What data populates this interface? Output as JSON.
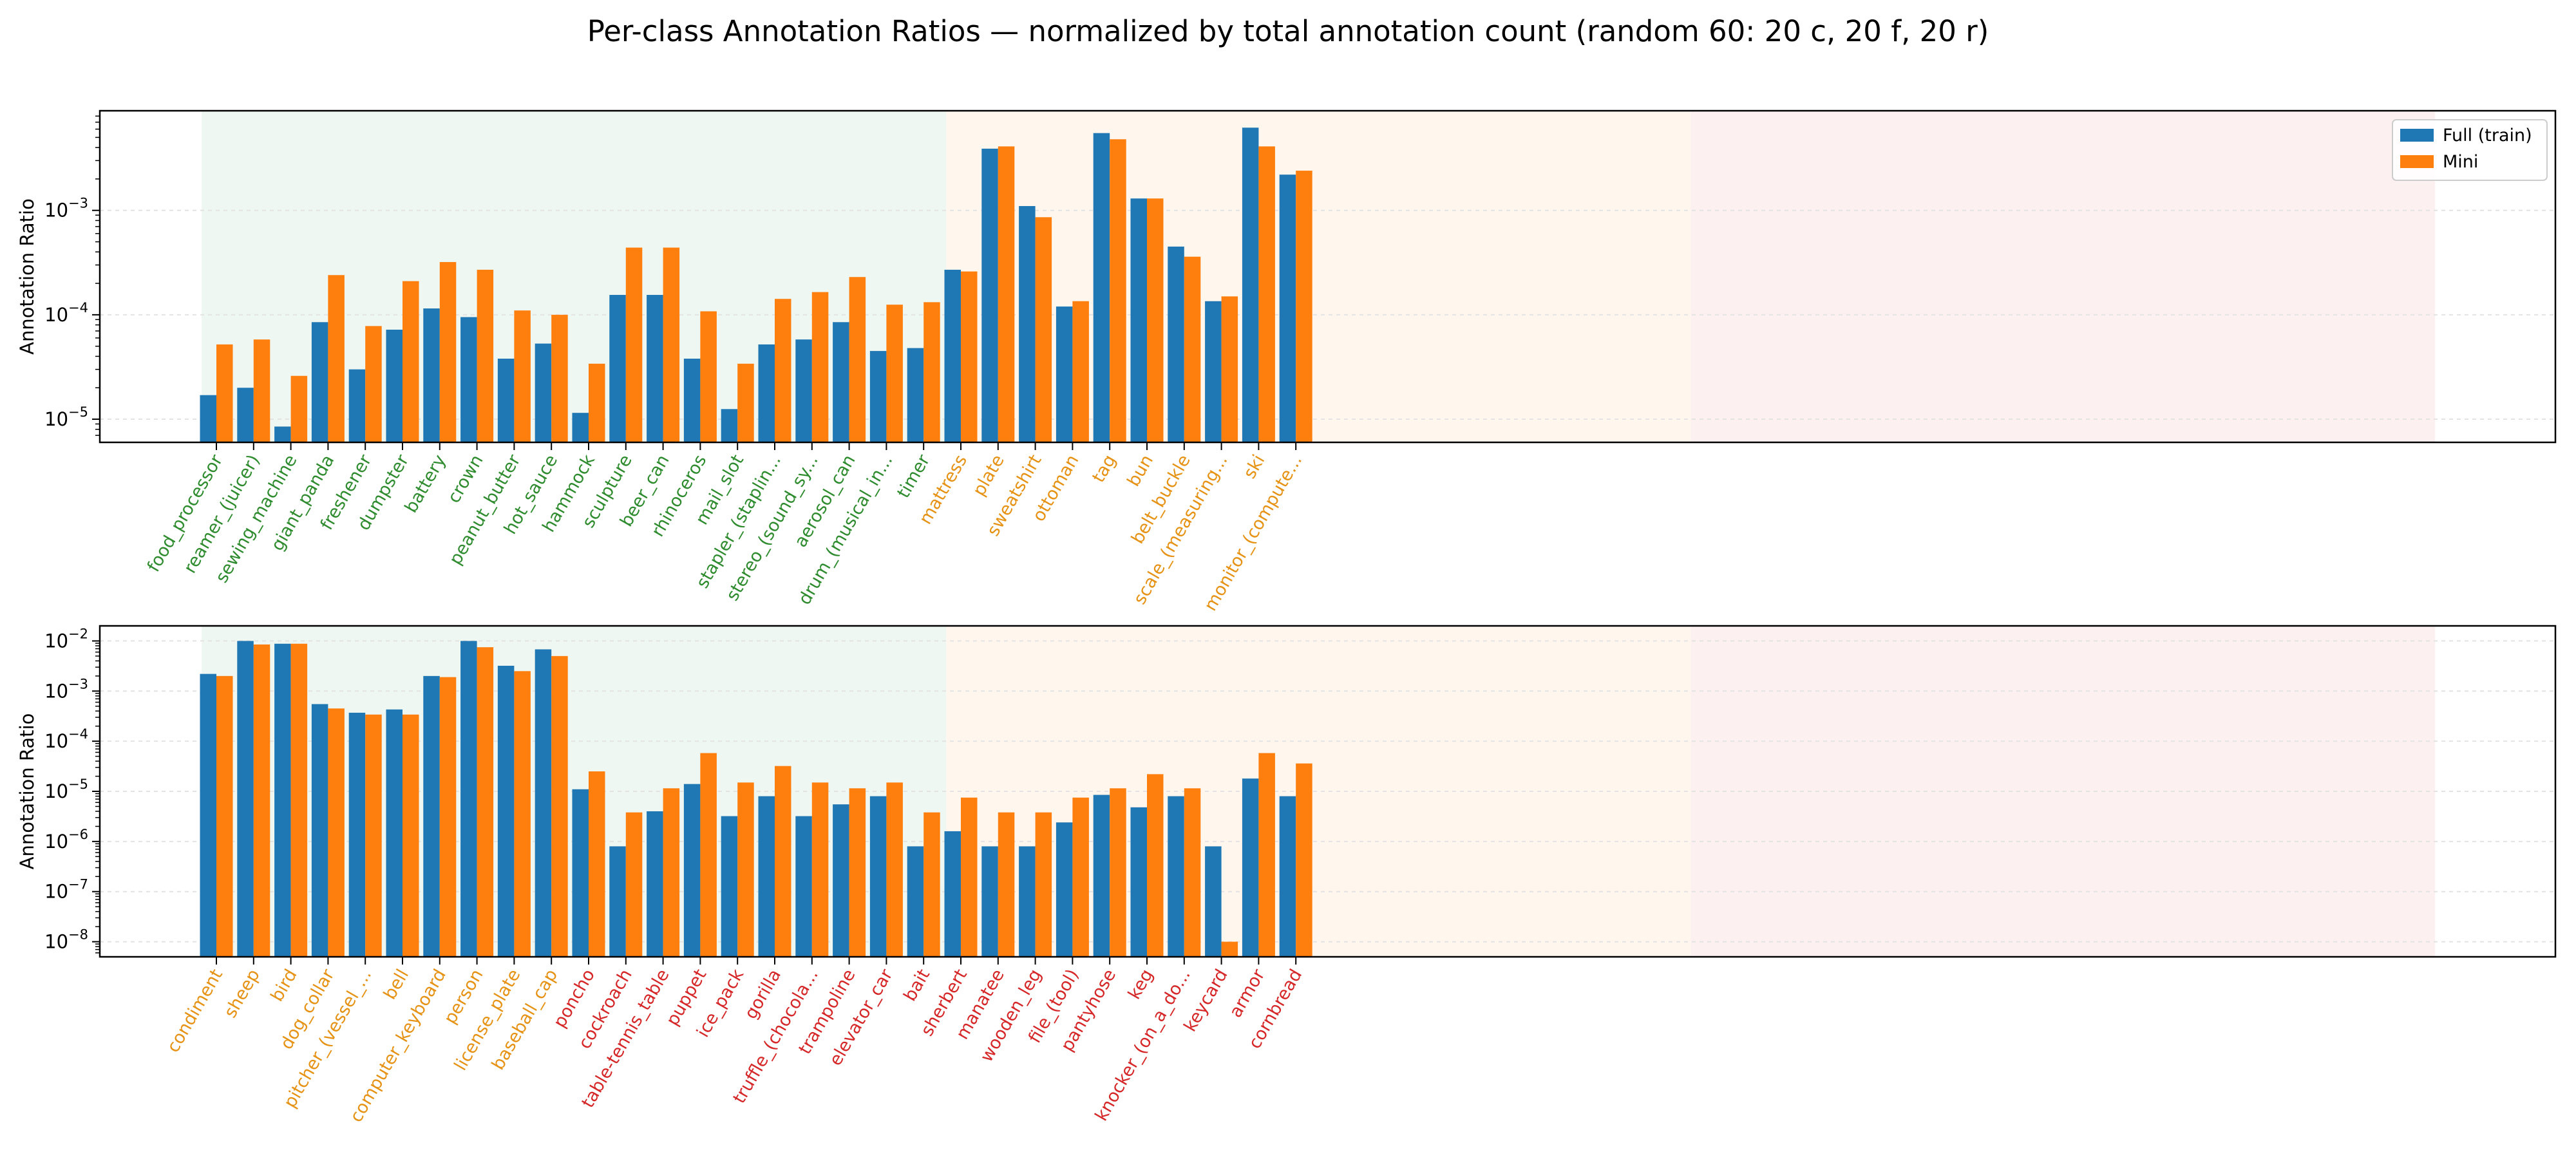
{
  "figure": {
    "title": "Per-class Annotation Ratios — normalized by total annotation count (random 60: 20 c, 20 f, 20 r)"
  },
  "colors": {
    "full": "#1f77b4",
    "mini": "#ff7f0e",
    "group_c_text": "#2e8b2e",
    "group_f_text": "#e69214",
    "group_r_text": "#d62728",
    "group_c_band": "#eef7f1",
    "group_f_band": "#fff6ee",
    "group_r_band": "#fcf0f1"
  },
  "chart_data": [
    {
      "type": "bar",
      "ylabel": "Annotation Ratio",
      "yscale": "log",
      "ylim": [
        6e-06,
        0.009
      ],
      "legend": {
        "position": "top-right",
        "entries": [
          "Full (train)",
          "Mini"
        ]
      },
      "grid": true,
      "categories": [
        "food_processor",
        "reamer_(juicer)",
        "sewing_machine",
        "giant_panda",
        "freshener",
        "dumpster",
        "battery",
        "crown",
        "peanut_butter",
        "hot_sauce",
        "hammock",
        "sculpture",
        "beer_can",
        "rhinoceros",
        "mail_slot",
        "stapler_(staplin...",
        "stereo_(sound_sy...",
        "aerosol_can",
        "drum_(musical_in...",
        "timer",
        "mattress",
        "plate",
        "sweatshirt",
        "ottoman",
        "tag",
        "bun",
        "belt_buckle",
        "scale_(measuring...",
        "ski",
        "monitor_(compute..."
      ],
      "category_groups": [
        "c",
        "c",
        "c",
        "c",
        "c",
        "c",
        "c",
        "c",
        "c",
        "c",
        "c",
        "c",
        "c",
        "c",
        "c",
        "c",
        "c",
        "c",
        "c",
        "c",
        "f",
        "f",
        "f",
        "f",
        "f",
        "f",
        "f",
        "f",
        "f",
        "f"
      ],
      "series": [
        {
          "name": "Full (train)",
          "values": [
            1.7e-05,
            2e-05,
            8.5e-06,
            8.5e-05,
            3e-05,
            7.2e-05,
            0.000115,
            9.5e-05,
            3.8e-05,
            5.3e-05,
            1.15e-05,
            0.000155,
            0.000155,
            3.8e-05,
            1.25e-05,
            5.2e-05,
            5.8e-05,
            8.5e-05,
            4.5e-05,
            4.8e-05,
            0.00027,
            0.0039,
            0.0011,
            0.00012,
            0.0055,
            0.0013,
            0.00045,
            0.000135,
            0.0062,
            0.0022
          ]
        },
        {
          "name": "Mini",
          "values": [
            5.2e-05,
            5.8e-05,
            2.6e-05,
            0.00024,
            7.8e-05,
            0.00021,
            0.00032,
            0.00027,
            0.00011,
            0.0001,
            3.4e-05,
            0.00044,
            0.00044,
            0.000108,
            3.4e-05,
            0.000142,
            0.000165,
            0.00023,
            0.000125,
            0.000132,
            0.00026,
            0.0041,
            0.00086,
            0.000135,
            0.0048,
            0.0013,
            0.00036,
            0.00015,
            0.0041,
            0.0024
          ]
        }
      ]
    },
    {
      "type": "bar",
      "ylabel": "Annotation Ratio",
      "yscale": "log",
      "ylim": [
        5e-09,
        0.02
      ],
      "grid": true,
      "categories": [
        "condiment",
        "sheep",
        "bird",
        "dog_collar",
        "pitcher_(vessel_...",
        "bell",
        "computer_keyboard",
        "person",
        "license_plate",
        "baseball_cap",
        "poncho",
        "cockroach",
        "table-tennis_table",
        "puppet",
        "ice_pack",
        "gorilla",
        "truffle_(chocola...",
        "trampoline",
        "elevator_car",
        "bait",
        "sherbert",
        "manatee",
        "wooden_leg",
        "file_(tool)",
        "pantyhose",
        "keg",
        "knocker_(on_a_do...",
        "keycard",
        "armor",
        "cornbread"
      ],
      "category_groups": [
        "f",
        "f",
        "f",
        "f",
        "f",
        "f",
        "f",
        "f",
        "f",
        "f",
        "r",
        "r",
        "r",
        "r",
        "r",
        "r",
        "r",
        "r",
        "r",
        "r",
        "r",
        "r",
        "r",
        "r",
        "r",
        "r",
        "r",
        "r",
        "r",
        "r"
      ],
      "series": [
        {
          "name": "Full (train)",
          "values": [
            0.0022,
            0.01,
            0.0088,
            0.00055,
            0.00037,
            0.00043,
            0.002,
            0.01,
            0.0032,
            0.0068,
            1.1e-05,
            8e-07,
            4e-06,
            1.4e-05,
            3.2e-06,
            8e-06,
            3.2e-06,
            5.5e-06,
            8e-06,
            8e-07,
            1.6e-06,
            8e-07,
            8e-07,
            2.4e-06,
            8.5e-06,
            4.8e-06,
            8e-06,
            8e-07,
            1.8e-05,
            8e-06
          ]
        },
        {
          "name": "Mini",
          "values": [
            0.002,
            0.0085,
            0.0088,
            0.00045,
            0.00034,
            0.00034,
            0.0019,
            0.0075,
            0.0025,
            0.005,
            2.5e-05,
            3.8e-06,
            1.15e-05,
            5.8e-05,
            1.5e-05,
            3.2e-05,
            1.5e-05,
            1.15e-05,
            1.5e-05,
            3.8e-06,
            7.5e-06,
            3.8e-06,
            3.8e-06,
            7.5e-06,
            1.15e-05,
            2.2e-05,
            1.15e-05,
            1e-08,
            5.8e-05,
            3.6e-05
          ]
        }
      ]
    }
  ]
}
